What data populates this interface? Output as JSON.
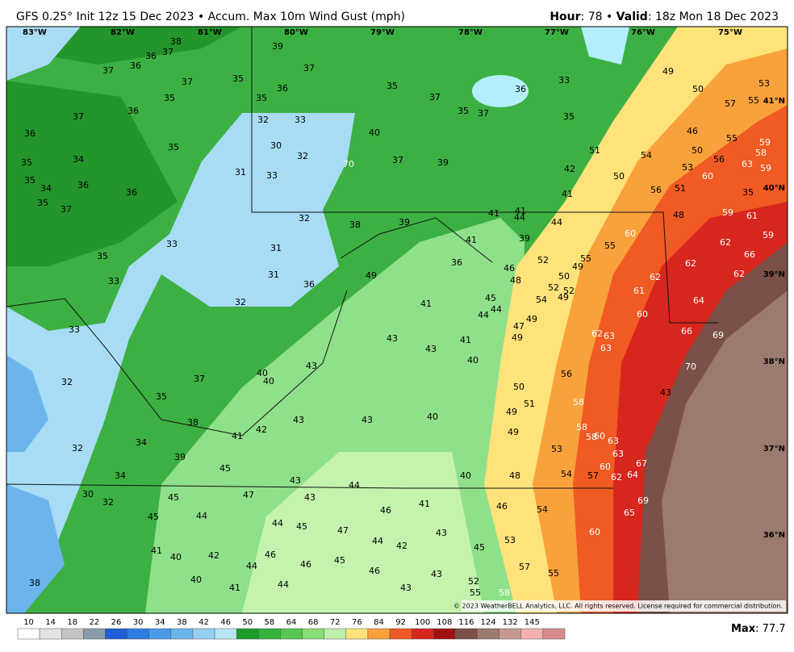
{
  "header": {
    "title": "GFS 0.25° Init 12z 15 Dec 2023 • Accum. Max 10m Wind Gust (mph)",
    "hour_label": "Hour",
    "hour_text": ": 78 • ",
    "valid_label": "Valid",
    "valid_text": ": 18z Mon 18 Dec 2023"
  },
  "map": {
    "lon_labels": [
      "83°W",
      "82°W",
      "81°W",
      "80°W",
      "79°W",
      "78°W",
      "77°W",
      "76°W",
      "75°W"
    ],
    "lat_labels": [
      "41°N",
      "40°N",
      "39°N",
      "38°N",
      "37°N",
      "36°N"
    ],
    "values": [
      38,
      37,
      36,
      37,
      36,
      37,
      35,
      39,
      37,
      36,
      35,
      35,
      37,
      36,
      36,
      35,
      35,
      34,
      35,
      34,
      36,
      36,
      35,
      37,
      35,
      33,
      33,
      31,
      32,
      33,
      30,
      32,
      33,
      32,
      31,
      31,
      36,
      32,
      33,
      32,
      32,
      30,
      32,
      34,
      34,
      35,
      37,
      38,
      39,
      41,
      42,
      43,
      43,
      40,
      45,
      47,
      43,
      43,
      44,
      45,
      45,
      44,
      41,
      40,
      42,
      40,
      41,
      44,
      46,
      44,
      45,
      46,
      44,
      45,
      47,
      44,
      42,
      46,
      41,
      43,
      46,
      43,
      43,
      45,
      40,
      48,
      46,
      54,
      53,
      57,
      55,
      52,
      55,
      58,
      60,
      65,
      69,
      64,
      67,
      62,
      60,
      57,
      54,
      53,
      63,
      63,
      60,
      58,
      58,
      58,
      56,
      49,
      49,
      51,
      50,
      40,
      41,
      43,
      43,
      41,
      44,
      44,
      45,
      47,
      49,
      49,
      54,
      48,
      46,
      52,
      50,
      52,
      52,
      49,
      49,
      55,
      55,
      60,
      61,
      62,
      60,
      62,
      63,
      63,
      66,
      64,
      62,
      62,
      66,
      62,
      59,
      61,
      59,
      48,
      44,
      44,
      41,
      41,
      41,
      36,
      39,
      38,
      49,
      39,
      40,
      40,
      43,
      41,
      42,
      51,
      50,
      54,
      56,
      51,
      53,
      50,
      46,
      49,
      50,
      57,
      55,
      53,
      55,
      56,
      60,
      63,
      59,
      58,
      59,
      35,
      33,
      36,
      35,
      37,
      35,
      35,
      37,
      40,
      37,
      39,
      70,
      70,
      69,
      43,
      38
    ],
    "copyright": "© 2023 WeatherBELL Analytics, LLC. All rights reserved. License required for commercial distribution."
  },
  "colorbar": {
    "ticks": [
      10,
      14,
      18,
      22,
      26,
      30,
      34,
      38,
      42,
      46,
      50,
      58,
      64,
      68,
      72,
      76,
      84,
      92,
      100,
      108,
      116,
      124,
      132,
      145
    ]
  },
  "max": {
    "label": "Max",
    "text": ": 77.7"
  }
}
